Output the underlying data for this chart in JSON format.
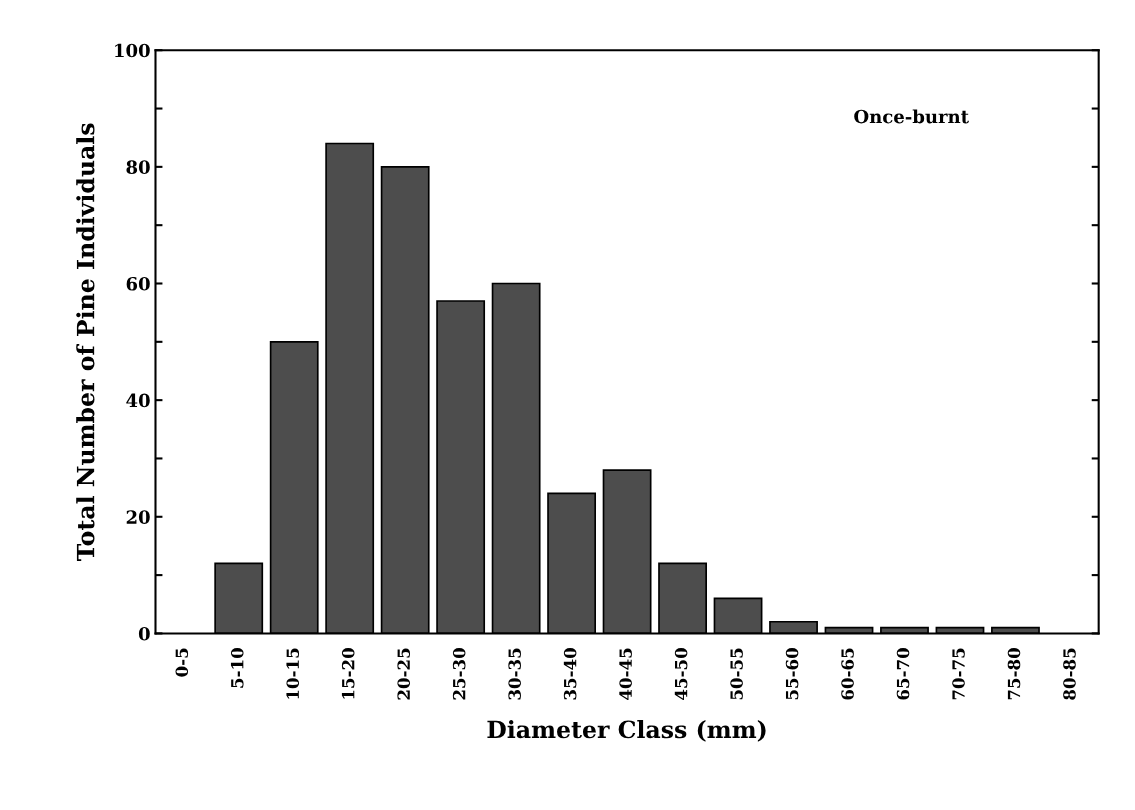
{
  "chart_data": {
    "type": "bar",
    "xlabel": "Diameter Class (mm)",
    "ylabel": "Total Number of Pine Individuals",
    "annotations": [
      "Once-burnt"
    ],
    "categories": [
      "0-5",
      "5-10",
      "10-15",
      "15-20",
      "20-25",
      "25-30",
      "30-35",
      "35-40",
      "40-45",
      "45-50",
      "50-55",
      "55-60",
      "60-65",
      "65-70",
      "70-75",
      "75-80",
      "80-85"
    ],
    "values": [
      0,
      12,
      50,
      84,
      80,
      57,
      60,
      24,
      28,
      12,
      6,
      2,
      1,
      1,
      1,
      1,
      0
    ],
    "color": "#4d4d4d",
    "ylim": [
      0,
      100
    ],
    "yticks": [
      0,
      {
        "value": 10,
        "label": null
      },
      20,
      {
        "value": 30,
        "label": null
      },
      40,
      {
        "value": 50,
        "label": null
      },
      60,
      {
        "value": 70,
        "label": null
      },
      80,
      {
        "value": 90,
        "label": null
      },
      100
    ],
    "grid": false,
    "legend": false
  }
}
